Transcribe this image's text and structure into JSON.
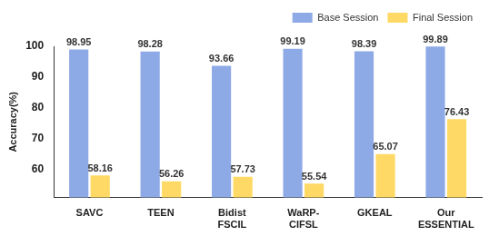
{
  "chart_data": {
    "type": "bar",
    "y_label": "Accuracy(%)",
    "categories": [
      "SAVC",
      "TEEN",
      [
        "Bidist",
        "FSCIL"
      ],
      [
        "WaRP-",
        "CIFSL"
      ],
      "GKEAL",
      [
        "Our",
        "ESSENTIAL"
      ]
    ],
    "series": [
      {
        "name": "Base Session",
        "color": "#8eaae6",
        "values": [
          98.95,
          98.28,
          93.66,
          99.19,
          98.39,
          99.89
        ]
      },
      {
        "name": "Final Session",
        "color": "#ffd966",
        "values": [
          58.16,
          56.26,
          57.73,
          55.54,
          65.07,
          76.43
        ]
      }
    ],
    "ylim": [
      51,
      100
    ],
    "yticks": [
      60,
      70,
      80,
      90,
      100
    ],
    "grid": false,
    "legend": "top right",
    "data_labels": true
  }
}
